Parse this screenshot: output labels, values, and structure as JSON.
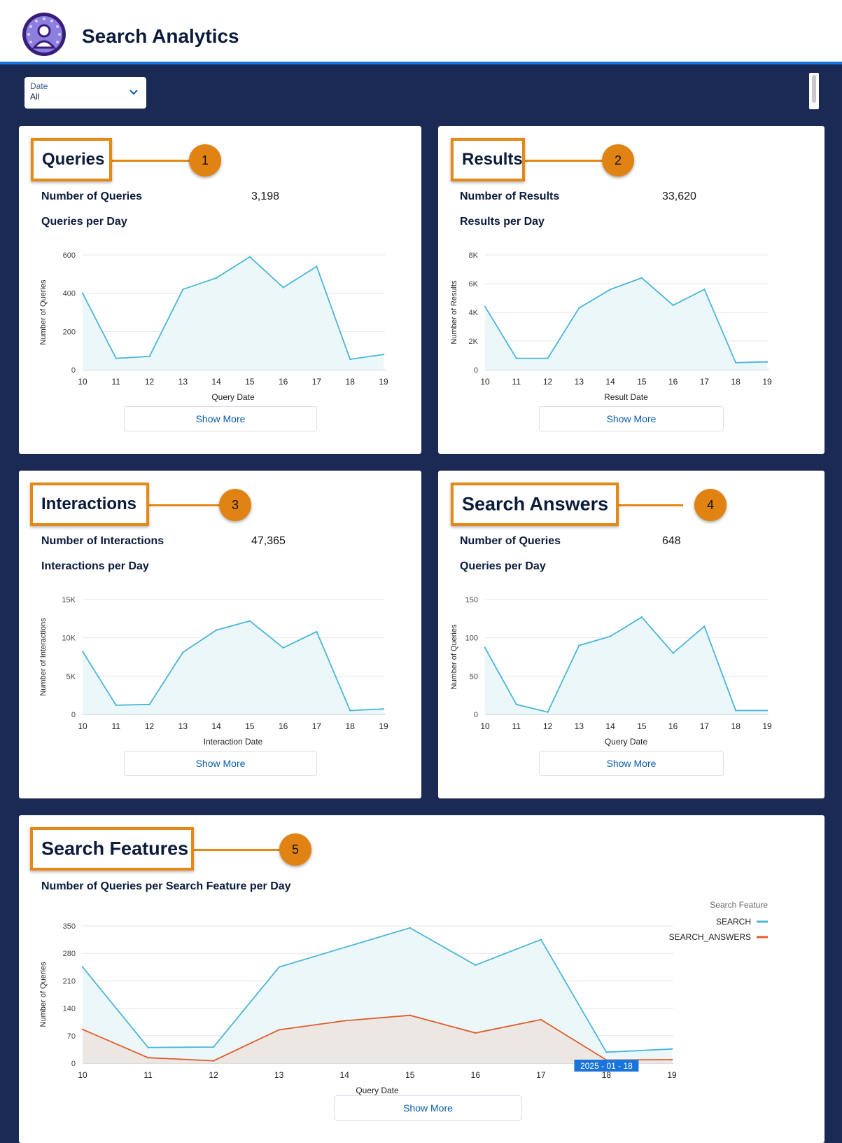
{
  "app": {
    "title": "Search Analytics"
  },
  "filter": {
    "label": "Date",
    "value": "All"
  },
  "colors": {
    "accent": "#1b74d9",
    "navy": "#1b2a54",
    "callout": "#e58815",
    "search_line": "#4bb6d8",
    "answers_line": "#e25c2e"
  },
  "cards": {
    "queries": {
      "callout": "Queries",
      "badge": "1",
      "metric_label": "Number of Queries",
      "metric_value": "3,198",
      "chart_title": "Queries per Day",
      "show_more": "Show More"
    },
    "results": {
      "callout": "Results",
      "badge": "2",
      "metric_label": "Number of Results",
      "metric_value": "33,620",
      "chart_title": "Results per Day",
      "show_more": "Show More"
    },
    "interactions": {
      "callout": "Interactions",
      "badge": "3",
      "metric_label": "Number of Interactions",
      "metric_value": "47,365",
      "chart_title": "Interactions per Day",
      "show_more": "Show More"
    },
    "answers": {
      "callout": "Search Answers",
      "badge": "4",
      "metric_label": "Number of Queries",
      "metric_value": "648",
      "chart_title": "Queries per Day",
      "show_more": "Show More"
    },
    "features": {
      "callout": "Search Features",
      "badge": "5",
      "chart_title": "Number of Queries per Search Feature per Day",
      "show_more": "Show More"
    }
  },
  "chart_data": [
    {
      "id": "queries",
      "type": "area",
      "xlabel": "Query Date",
      "ylabel": "Number of Queries",
      "x": [
        "10",
        "11",
        "12",
        "13",
        "14",
        "15",
        "16",
        "17",
        "18",
        "19"
      ],
      "yticks": [
        "0",
        "200",
        "400",
        "600"
      ],
      "tick_values": [
        0,
        200,
        400,
        600
      ],
      "ylim": [
        0,
        600
      ],
      "series": [
        {
          "values": [
            400,
            60,
            70,
            420,
            480,
            590,
            430,
            540,
            55,
            80
          ]
        }
      ]
    },
    {
      "id": "results",
      "type": "area",
      "xlabel": "Result Date",
      "ylabel": "Number of Results",
      "x": [
        "10",
        "11",
        "12",
        "13",
        "14",
        "15",
        "16",
        "17",
        "18",
        "19"
      ],
      "yticks": [
        "0",
        "2K",
        "4K",
        "6K",
        "8K"
      ],
      "tick_values": [
        0,
        2000,
        4000,
        6000,
        8000
      ],
      "ylim": [
        0,
        8000
      ],
      "series": [
        {
          "values": [
            4400,
            800,
            800,
            4300,
            5600,
            6400,
            4500,
            5600,
            500,
            550
          ]
        }
      ]
    },
    {
      "id": "interactions",
      "type": "area",
      "xlabel": "Interaction Date",
      "ylabel": "Number of Interactions",
      "x": [
        "10",
        "11",
        "12",
        "13",
        "14",
        "15",
        "16",
        "17",
        "18",
        "19"
      ],
      "yticks": [
        "0",
        "5K",
        "10K",
        "15K"
      ],
      "tick_values": [
        0,
        5000,
        10000,
        15000
      ],
      "ylim": [
        0,
        15000
      ],
      "series": [
        {
          "values": [
            8200,
            1200,
            1300,
            8100,
            11000,
            12200,
            8700,
            10800,
            500,
            700
          ]
        }
      ]
    },
    {
      "id": "answers",
      "type": "area",
      "xlabel": "Query Date",
      "ylabel": "Number of Queries",
      "x": [
        "10",
        "11",
        "12",
        "13",
        "14",
        "15",
        "16",
        "17",
        "18",
        "19"
      ],
      "yticks": [
        "0",
        "50",
        "100",
        "150"
      ],
      "tick_values": [
        0,
        50,
        100,
        150
      ],
      "ylim": [
        0,
        150
      ],
      "series": [
        {
          "values": [
            87,
            13,
            3,
            90,
            102,
            127,
            80,
            115,
            5,
            5
          ]
        }
      ]
    },
    {
      "id": "features",
      "type": "area",
      "xlabel": "Query Date",
      "ylabel": "Number of Queries",
      "x": [
        "10",
        "11",
        "12",
        "13",
        "14",
        "15",
        "16",
        "17",
        "18",
        "19"
      ],
      "yticks": [
        "0",
        "70",
        "140",
        "210",
        "280",
        "350"
      ],
      "tick_values": [
        0,
        70,
        140,
        210,
        280,
        350
      ],
      "ylim": [
        0,
        350
      ],
      "legend_title": "Search Feature",
      "legend_position": "top-right",
      "tooltip": "2025 - 01 - 18",
      "series": [
        {
          "name": "SEARCH",
          "color": "#4bb6d8",
          "fill": "#eaf6f9",
          "values": [
            245,
            40,
            41,
            245,
            295,
            345,
            250,
            315,
            28,
            36
          ]
        },
        {
          "name": "SEARCH_ANSWERS",
          "color": "#e25c2e",
          "fill": "#ede7e4",
          "values": [
            86,
            14,
            6,
            85,
            108,
            122,
            77,
            111,
            8,
            9
          ]
        }
      ]
    }
  ]
}
